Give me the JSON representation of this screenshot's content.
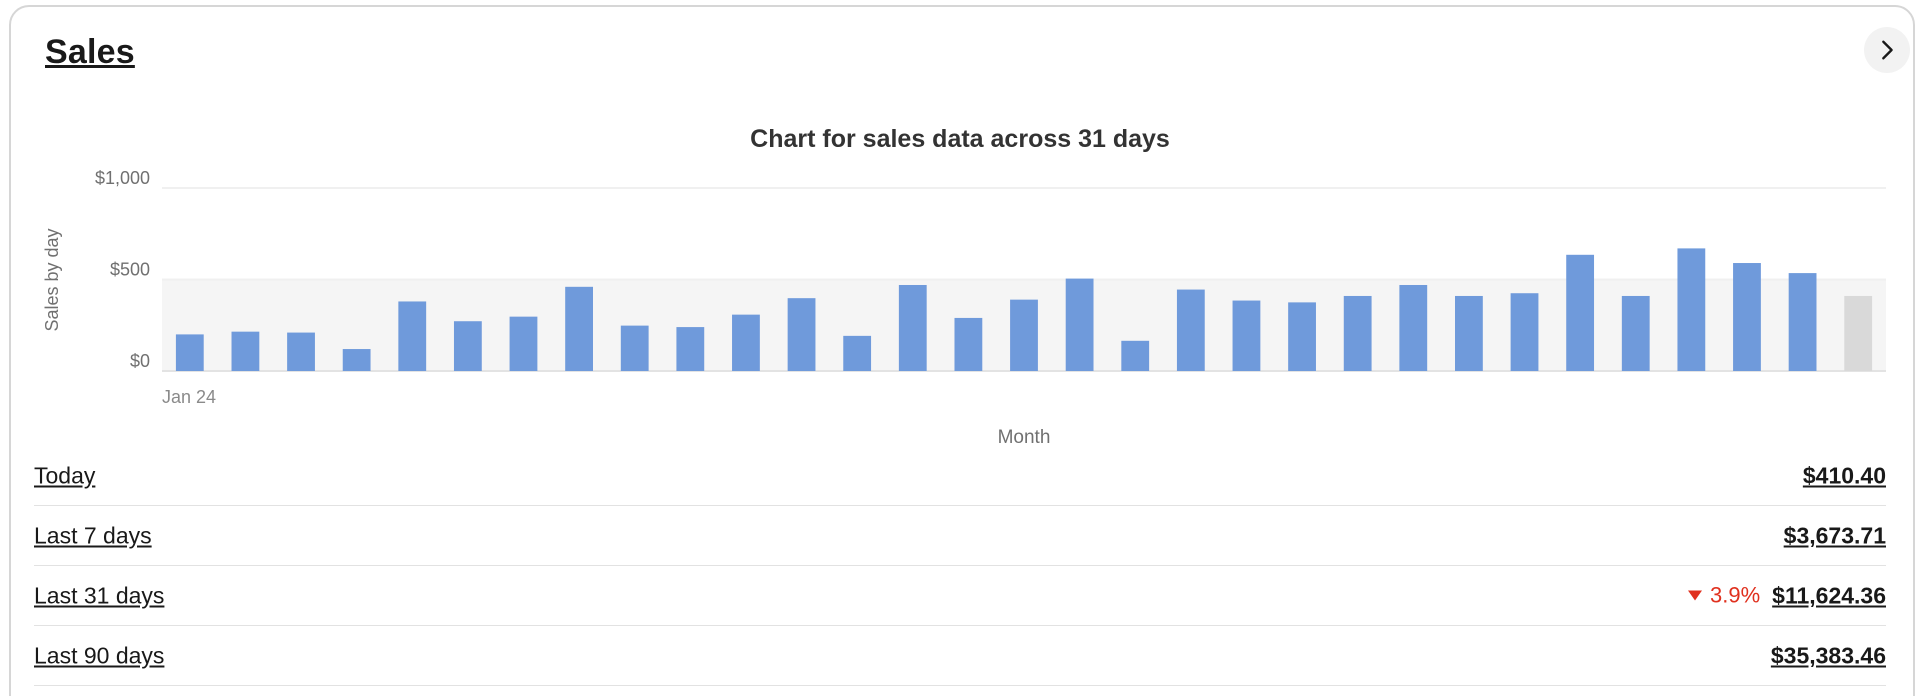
{
  "card": {
    "title": "Sales"
  },
  "chart_data": {
    "type": "bar",
    "title": "Chart for sales data across 31 days",
    "ylabel": "Sales by day",
    "xlabel": "Month",
    "x_start_label": "Jan 24",
    "yticks": [
      "$1,000",
      "$500",
      "$0"
    ],
    "ylim": [
      0,
      1000
    ],
    "grid": true,
    "colors": {
      "bar": "#6f9adb",
      "current_day_bar": "#d9d9d9",
      "band": "#f5f5f5"
    },
    "values": [
      200,
      215,
      210,
      120,
      380,
      272,
      297,
      460,
      248,
      240,
      308,
      398,
      192,
      470,
      290,
      390,
      505,
      165,
      445,
      385,
      375,
      410,
      470,
      410,
      425,
      635,
      410,
      670,
      590,
      535,
      410
    ]
  },
  "summary": [
    {
      "label": "Today",
      "value": "$410.40",
      "change": null
    },
    {
      "label": "Last 7 days",
      "value": "$3,673.71",
      "change": null
    },
    {
      "label": "Last 31 days",
      "value": "$11,624.36",
      "change": "3.9%"
    },
    {
      "label": "Last 90 days",
      "value": "$35,383.46",
      "change": null
    }
  ],
  "trend_color": "#e0301e"
}
